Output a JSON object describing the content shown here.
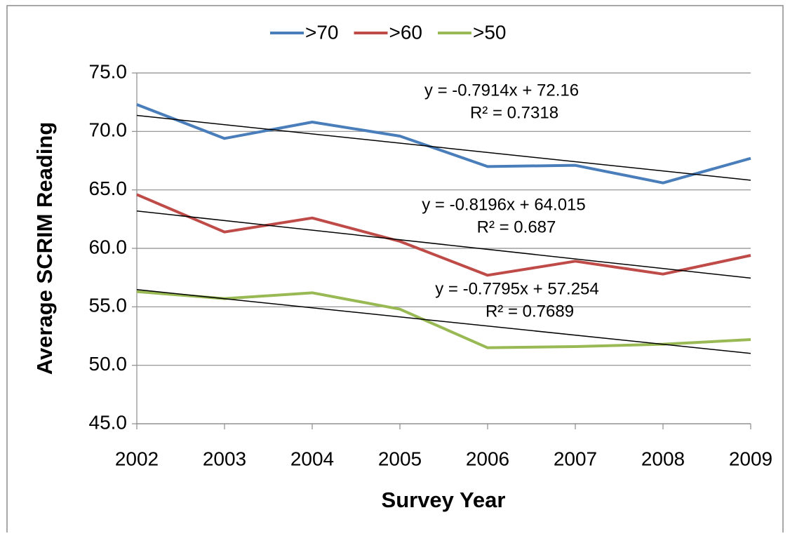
{
  "chart_data": {
    "type": "line",
    "x_label": "Survey Year",
    "y_label": "Average SCRIM Reading",
    "categories": [
      "2002",
      "2003",
      "2004",
      "2005",
      "2006",
      "2007",
      "2008",
      "2009"
    ],
    "series": [
      {
        "name": ">70",
        "color": "#4a7ebb",
        "values": [
          72.3,
          69.4,
          70.8,
          69.6,
          67.0,
          67.1,
          65.6,
          67.7
        ]
      },
      {
        "name": ">60",
        "color": "#be4b48",
        "values": [
          64.6,
          61.4,
          62.6,
          60.6,
          57.7,
          58.9,
          57.8,
          59.4
        ]
      },
      {
        "name": ">50",
        "color": "#98b954",
        "values": [
          56.3,
          55.7,
          56.2,
          54.8,
          51.5,
          51.6,
          51.8,
          52.2
        ]
      }
    ],
    "trendlines": [
      {
        "slope": -0.7914,
        "intercept": 72.16,
        "equation": "y = -0.7914x + 72.16",
        "r_squared": "R² = 0.7318"
      },
      {
        "slope": -0.8196,
        "intercept": 64.015,
        "equation": "y = -0.8196x + 64.015",
        "r_squared": "R² = 0.687"
      },
      {
        "slope": -0.7795,
        "intercept": 57.254,
        "equation": "y = -0.7795x + 57.254",
        "r_squared": "R² = 0.7689"
      }
    ],
    "ylim": [
      45,
      75
    ],
    "yticks": [
      {
        "value": 45,
        "label": "45.0"
      },
      {
        "value": 50,
        "label": "50.0"
      },
      {
        "value": 55,
        "label": "55.0"
      },
      {
        "value": 60,
        "label": "60.0"
      },
      {
        "value": 65,
        "label": "65.0"
      },
      {
        "value": 70,
        "label": "70.0"
      },
      {
        "value": 75,
        "label": "75.0"
      }
    ],
    "grid": true,
    "legend": "top"
  }
}
